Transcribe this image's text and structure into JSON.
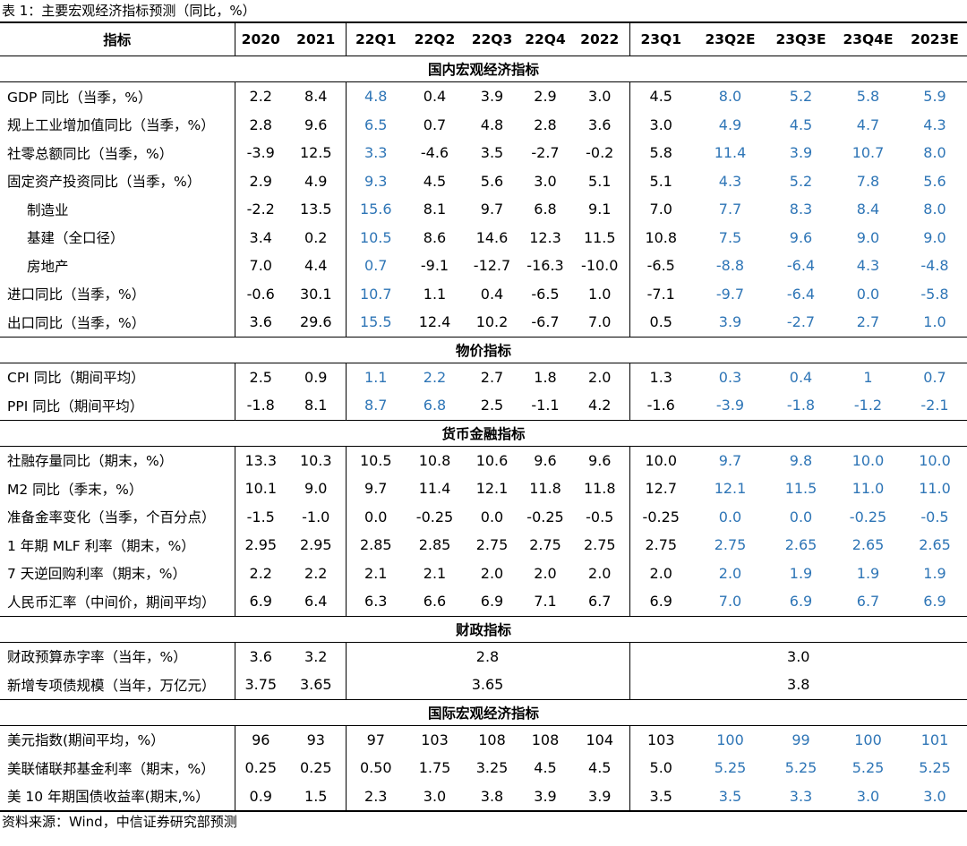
{
  "caption": "表 1：主要宏观经济指标预测（同比，%）",
  "source": "资料来源：Wind，中信证券研究部预测",
  "headers": [
    "指标",
    "2020",
    "2021",
    "22Q1",
    "22Q2",
    "22Q3",
    "22Q4",
    "2022",
    "23Q1",
    "23Q2E",
    "23Q3E",
    "23Q4E",
    "2023E"
  ],
  "sections": [
    {
      "title": "国内宏观经济指标",
      "rows": [
        {
          "label": "GDP 同比（当季，%）",
          "values": [
            "2.2",
            "8.4",
            "4.8",
            "0.4",
            "3.9",
            "2.9",
            "3.0",
            "4.5",
            "8.0",
            "5.2",
            "5.8",
            "5.9"
          ]
        },
        {
          "label": "规上工业增加值同比（当季，%）",
          "values": [
            "2.8",
            "9.6",
            "6.5",
            "0.7",
            "4.8",
            "2.8",
            "3.6",
            "3.0",
            "4.9",
            "4.5",
            "4.7",
            "4.3"
          ]
        },
        {
          "label": "社零总额同比（当季，%）",
          "values": [
            "-3.9",
            "12.5",
            "3.3",
            "-4.6",
            "3.5",
            "-2.7",
            "-0.2",
            "5.8",
            "11.4",
            "3.9",
            "10.7",
            "8.0"
          ]
        },
        {
          "label": "固定资产投资同比（当季，%）",
          "values": [
            "2.9",
            "4.9",
            "9.3",
            "4.5",
            "5.6",
            "3.0",
            "5.1",
            "5.1",
            "4.3",
            "5.2",
            "7.8",
            "5.6"
          ]
        },
        {
          "label": "制造业",
          "indent": true,
          "values": [
            "-2.2",
            "13.5",
            "15.6",
            "8.1",
            "9.7",
            "6.8",
            "9.1",
            "7.0",
            "7.7",
            "8.3",
            "8.4",
            "8.0"
          ]
        },
        {
          "label": "基建（全口径）",
          "indent": true,
          "values": [
            "3.4",
            "0.2",
            "10.5",
            "8.6",
            "14.6",
            "12.3",
            "11.5",
            "10.8",
            "7.5",
            "9.6",
            "9.0",
            "9.0"
          ]
        },
        {
          "label": "房地产",
          "indent": true,
          "values": [
            "7.0",
            "4.4",
            "0.7",
            "-9.1",
            "-12.7",
            "-16.3",
            "-10.0",
            "-6.5",
            "-8.8",
            "-6.4",
            "4.3",
            "-4.8"
          ]
        },
        {
          "label": "进口同比（当季，%）",
          "values": [
            "-0.6",
            "30.1",
            "10.7",
            "1.1",
            "0.4",
            "-6.5",
            "1.0",
            "-7.1",
            "-9.7",
            "-6.4",
            "0.0",
            "-5.8"
          ]
        },
        {
          "label": "出口同比（当季，%）",
          "values": [
            "3.6",
            "29.6",
            "15.5",
            "12.4",
            "10.2",
            "-6.7",
            "7.0",
            "0.5",
            "3.9",
            "-2.7",
            "2.7",
            "1.0"
          ]
        }
      ]
    },
    {
      "title": "物价指标",
      "rows": [
        {
          "label": "CPI 同比（期间平均）",
          "values": [
            "2.5",
            "0.9",
            "1.1",
            "2.2",
            "2.7",
            "1.8",
            "2.0",
            "1.3",
            "0.3",
            "0.4",
            "1",
            "0.7"
          ]
        },
        {
          "label": "PPI 同比（期间平均）",
          "values": [
            "-1.8",
            "8.1",
            "8.7",
            "6.8",
            "2.5",
            "-1.1",
            "4.2",
            "-1.6",
            "-3.9",
            "-1.8",
            "-1.2",
            "-2.1"
          ]
        }
      ]
    },
    {
      "title": "货币金融指标",
      "rows": [
        {
          "label": "社融存量同比（期末，%）",
          "values": [
            "13.3",
            "10.3",
            "10.5",
            "10.8",
            "10.6",
            "9.6",
            "9.6",
            "10.0",
            "9.7",
            "9.8",
            "10.0",
            "10.0"
          ]
        },
        {
          "label": "M2 同比（季末，%）",
          "values": [
            "10.1",
            "9.0",
            "9.7",
            "11.4",
            "12.1",
            "11.8",
            "11.8",
            "12.7",
            "12.1",
            "11.5",
            "11.0",
            "11.0"
          ]
        },
        {
          "label": "准备金率变化（当季，个百分点）",
          "values": [
            "-1.5",
            "-1.0",
            "0.0",
            "-0.25",
            "0.0",
            "-0.25",
            "-0.5",
            "-0.25",
            "0.0",
            "0.0",
            "-0.25",
            "-0.5"
          ]
        },
        {
          "label": "1 年期 MLF 利率（期末，%）",
          "values": [
            "2.95",
            "2.95",
            "2.85",
            "2.85",
            "2.75",
            "2.75",
            "2.75",
            "2.75",
            "2.75",
            "2.65",
            "2.65",
            "2.65"
          ]
        },
        {
          "label": "7 天逆回购利率（期末，%）",
          "values": [
            "2.2",
            "2.2",
            "2.1",
            "2.1",
            "2.0",
            "2.0",
            "2.0",
            "2.0",
            "2.0",
            "1.9",
            "1.9",
            "1.9"
          ]
        },
        {
          "label": "人民币汇率（中间价，期间平均）",
          "values": [
            "6.9",
            "6.4",
            "6.3",
            "6.6",
            "6.9",
            "7.1",
            "6.7",
            "6.9",
            "7.0",
            "6.9",
            "6.7",
            "6.9"
          ]
        }
      ]
    },
    {
      "title": "财政指标",
      "merged": true,
      "rows": [
        {
          "label": "财政预算赤字率（当年，%）",
          "y2020": "3.6",
          "y2021": "3.2",
          "y2022": "2.8",
          "y2023": "3.0"
        },
        {
          "label": "新增专项债规模（当年，万亿元）",
          "y2020": "3.75",
          "y2021": "3.65",
          "y2022": "3.65",
          "y2023": "3.8"
        }
      ]
    },
    {
      "title": "国际宏观经济指标",
      "rows": [
        {
          "label": "美元指数(期间平均，%）",
          "values": [
            "96",
            "93",
            "97",
            "103",
            "108",
            "108",
            "104",
            "103",
            "100",
            "99",
            "100",
            "101"
          ]
        },
        {
          "label": "美联储联邦基金利率（期末，%）",
          "values": [
            "0.25",
            "0.25",
            "0.50",
            "1.75",
            "3.25",
            "4.5",
            "4.5",
            "5.0",
            "5.25",
            "5.25",
            "5.25",
            "5.25"
          ]
        },
        {
          "label": "美 10 年期国债收益率(期末,%）",
          "values": [
            "0.9",
            "1.5",
            "2.3",
            "3.0",
            "3.8",
            "3.9",
            "3.9",
            "3.5",
            "3.5",
            "3.3",
            "3.0",
            "3.0"
          ]
        }
      ]
    }
  ],
  "colors": {
    "forecast": "#2e75b6",
    "text": "#000000"
  }
}
